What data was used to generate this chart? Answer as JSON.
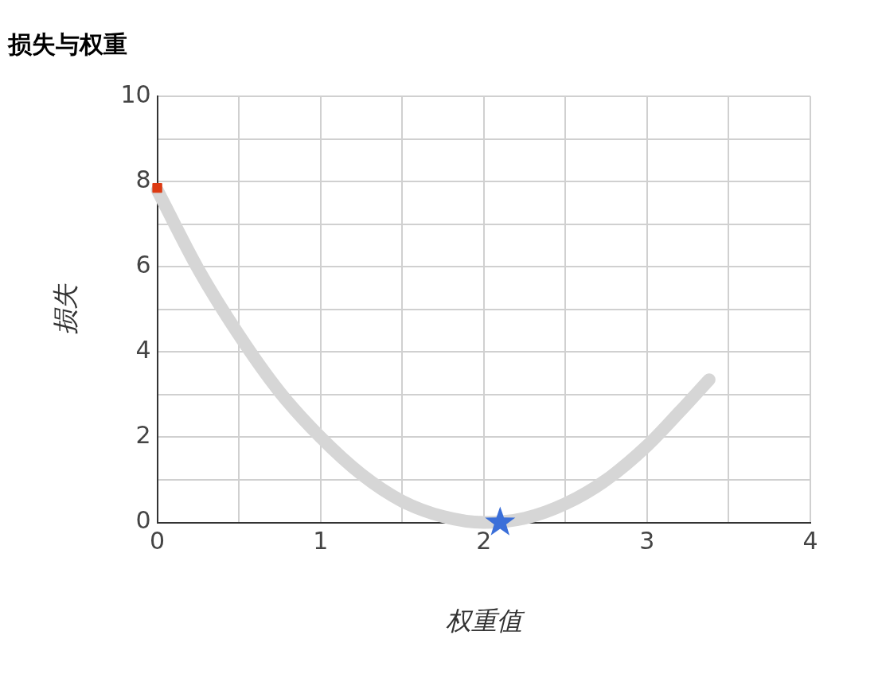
{
  "chart_data": {
    "type": "line",
    "title": "损失与权重",
    "xlabel": "权重值",
    "ylabel": "损失",
    "xlim": [
      0,
      4
    ],
    "xticks": [
      0,
      {
        "value": 0.5,
        "label": null
      },
      1,
      {
        "value": 1.5,
        "label": null
      },
      2,
      {
        "value": 2.5,
        "label": null
      },
      3,
      {
        "value": 3.5,
        "label": null
      },
      4
    ],
    "ylim": [
      0,
      10
    ],
    "yticks": [
      0,
      {
        "value": 1,
        "label": null
      },
      2,
      {
        "value": 3,
        "label": null
      },
      4,
      {
        "value": 5,
        "label": null
      },
      6,
      {
        "value": 7,
        "label": null
      },
      8,
      {
        "value": 9,
        "label": null
      },
      10
    ],
    "grid": true,
    "legend": false,
    "series": [
      {
        "type": "line",
        "color": "#d6d6d6",
        "marker": "none",
        "x": [
          0,
          0.25,
          0.5,
          0.75,
          1,
          1.25,
          1.5,
          1.75,
          2,
          2.25,
          2.5,
          2.75,
          3,
          3.2,
          3.38
        ],
        "values": [
          7.8,
          5.95,
          4.4,
          3.06,
          2.0,
          1.13,
          0.5,
          0.14,
          0.0,
          0.1,
          0.44,
          1.0,
          1.8,
          2.6,
          3.35
        ]
      },
      {
        "type": "scatter",
        "color": "#dd3a12",
        "marker": "square",
        "x": [
          0
        ],
        "values": [
          7.85
        ]
      },
      {
        "type": "scatter",
        "color": "#3b6fd9",
        "marker": "star",
        "x": [
          2.1
        ],
        "values": [
          0
        ]
      }
    ]
  }
}
